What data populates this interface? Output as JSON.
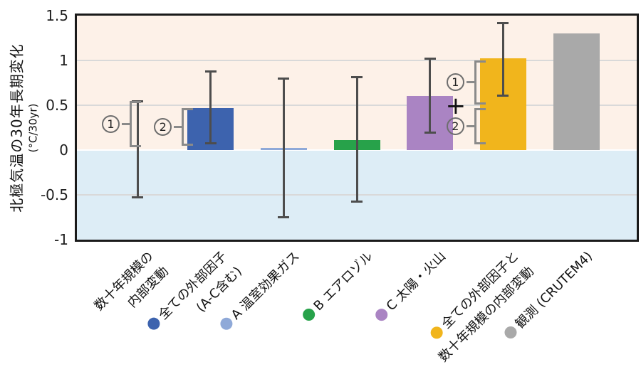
{
  "chart_data": {
    "type": "bar",
    "title": "",
    "ylabel": "北極気温の30年長期変化",
    "ylabel_sub": "(°C/30yr)",
    "ylim": [
      -1,
      1.5
    ],
    "yticks": [
      "1.5",
      "1",
      "0.5",
      "0",
      "-0.5",
      "-1"
    ],
    "ytick_values": [
      1.5,
      1,
      0.5,
      0,
      -0.5,
      -1
    ],
    "gridline_values": [
      1,
      0.5,
      -0.5
    ],
    "zero_line_value": 0,
    "legend_position": "none",
    "grid": "on",
    "categories": [
      {
        "label_lines": [
          "数十年規模の",
          "内部変動"
        ],
        "dot_color": null,
        "bar_color": null,
        "value": null,
        "error_low": -0.53,
        "error_high": 0.55
      },
      {
        "label_lines": [
          "全ての外部因子",
          "(A-C含む)"
        ],
        "dot_color": "#3d63ae",
        "bar_color": "#3d63ae",
        "value": 0.47,
        "error_low": 0.07,
        "error_high": 0.88
      },
      {
        "label_lines": [
          "A 温室効果ガス"
        ],
        "dot_color": "#8fa9d8",
        "bar_color": "#8fa9d8",
        "value": 0.02,
        "error_low": -0.75,
        "error_high": 0.8
      },
      {
        "label_lines": [
          "B エアロゾル"
        ],
        "dot_color": "#27a24a",
        "bar_color": "#27a24a",
        "value": 0.11,
        "error_low": -0.58,
        "error_high": 0.82
      },
      {
        "label_lines": [
          "C 太陽・火山"
        ],
        "dot_color": "#aa84c3",
        "bar_color": "#aa84c3",
        "value": 0.6,
        "error_low": 0.19,
        "error_high": 1.02
      },
      {
        "label_lines": [
          "全ての外部因子と",
          "数十年規模の内部変動"
        ],
        "dot_color": "#f1b51c",
        "bar_color": "#f1b51c",
        "value": 1.02,
        "error_low": 0.6,
        "error_high": 1.42
      },
      {
        "label_lines": [
          "観測 (CRUTEM4)"
        ],
        "dot_color": "#a9a9a9",
        "bar_color": "#a9a9a9",
        "value": 1.3,
        "error_low": null,
        "error_high": null
      }
    ],
    "annotations": {
      "brackets": [
        {
          "symbol": "1",
          "category": 0,
          "value_from": 0.03,
          "value_to": 0.55
        },
        {
          "symbol": "2",
          "category": 1,
          "value_from": 0.05,
          "value_to": 0.47
        },
        {
          "symbol": "1",
          "category": 5,
          "value_from": 0.51,
          "value_to": 1.0
        },
        {
          "symbol": "2",
          "category": 5,
          "value_from": 0.06,
          "value_to": 0.47
        }
      ],
      "plus": {
        "symbol": "+",
        "category": 5,
        "value": 0.49
      }
    },
    "colors": {
      "background_above_zero": "#fdf1e8",
      "background_below_zero": "#ddedf6",
      "gridline": "#d9d9d9",
      "zero_line": "#ffffff",
      "axis_border": "#1a1a1a",
      "error_bar": "#4d4d4d",
      "bracket": "#8a8a8a",
      "text": "#1a1a1a"
    }
  }
}
